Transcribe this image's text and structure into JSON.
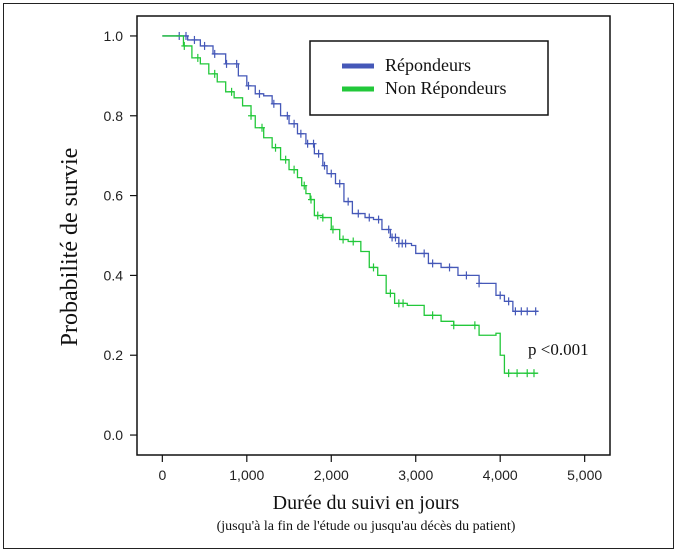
{
  "chart_data": {
    "type": "line",
    "title": "",
    "xlabel": "Durée du suivi en jours",
    "xlabel_sub": "(jusqu'à la fin de l'étude ou jusqu'au décès du patient)",
    "ylabel": "Probabilité de survie",
    "xlim": [
      -300,
      5300
    ],
    "ylim": [
      -0.05,
      1.05
    ],
    "x_ticks": [
      0,
      1000,
      2000,
      3000,
      4000,
      5000
    ],
    "x_tick_labels": [
      "0",
      "1,000",
      "2,000",
      "3,000",
      "4,000",
      "5,000"
    ],
    "y_ticks": [
      0.0,
      0.2,
      0.4,
      0.6,
      0.8,
      1.0
    ],
    "y_tick_labels": [
      "0.0",
      "0.2",
      "0.4",
      "0.6",
      "0.8",
      "1.0"
    ],
    "grid": false,
    "legend_position": "top-center",
    "annotation": "p <0.001",
    "series": [
      {
        "name": "Répondeurs",
        "color": "#4558b8",
        "step": true,
        "points": [
          [
            0,
            1.0
          ],
          [
            150,
            1.0
          ],
          [
            300,
            0.99
          ],
          [
            450,
            0.975
          ],
          [
            600,
            0.955
          ],
          [
            750,
            0.93
          ],
          [
            900,
            0.9
          ],
          [
            1000,
            0.875
          ],
          [
            1100,
            0.855
          ],
          [
            1200,
            0.85
          ],
          [
            1300,
            0.83
          ],
          [
            1400,
            0.8
          ],
          [
            1500,
            0.78
          ],
          [
            1600,
            0.755
          ],
          [
            1700,
            0.73
          ],
          [
            1800,
            0.705
          ],
          [
            1900,
            0.675
          ],
          [
            1950,
            0.655
          ],
          [
            2050,
            0.63
          ],
          [
            2150,
            0.585
          ],
          [
            2250,
            0.555
          ],
          [
            2400,
            0.545
          ],
          [
            2500,
            0.54
          ],
          [
            2600,
            0.515
          ],
          [
            2700,
            0.495
          ],
          [
            2800,
            0.48
          ],
          [
            2950,
            0.475
          ],
          [
            3000,
            0.455
          ],
          [
            3150,
            0.43
          ],
          [
            3300,
            0.42
          ],
          [
            3500,
            0.4
          ],
          [
            3750,
            0.38
          ],
          [
            3950,
            0.35
          ],
          [
            4050,
            0.335
          ],
          [
            4150,
            0.31
          ],
          [
            4450,
            0.31
          ]
        ],
        "censor_x": [
          200,
          280,
          380,
          500,
          620,
          760,
          880,
          1020,
          1150,
          1320,
          1480,
          1560,
          1640,
          1720,
          1790,
          1850,
          1920,
          2000,
          2100,
          2200,
          2320,
          2450,
          2560,
          2680,
          2720,
          2760,
          2800,
          2840,
          2880,
          3100,
          3200,
          3400,
          3600,
          3750,
          4000,
          4100,
          4180,
          4250,
          4320,
          4420
        ]
      },
      {
        "name": "Non Répondeurs",
        "color": "#22c83a",
        "step": true,
        "points": [
          [
            0,
            1.0
          ],
          [
            250,
            0.975
          ],
          [
            350,
            0.945
          ],
          [
            450,
            0.93
          ],
          [
            550,
            0.905
          ],
          [
            650,
            0.885
          ],
          [
            750,
            0.86
          ],
          [
            850,
            0.845
          ],
          [
            950,
            0.825
          ],
          [
            1050,
            0.8
          ],
          [
            1100,
            0.77
          ],
          [
            1200,
            0.745
          ],
          [
            1300,
            0.72
          ],
          [
            1400,
            0.69
          ],
          [
            1500,
            0.665
          ],
          [
            1600,
            0.645
          ],
          [
            1650,
            0.625
          ],
          [
            1700,
            0.605
          ],
          [
            1750,
            0.59
          ],
          [
            1800,
            0.55
          ],
          [
            1900,
            0.545
          ],
          [
            2000,
            0.515
          ],
          [
            2100,
            0.49
          ],
          [
            2200,
            0.485
          ],
          [
            2350,
            0.46
          ],
          [
            2450,
            0.42
          ],
          [
            2550,
            0.4
          ],
          [
            2650,
            0.355
          ],
          [
            2750,
            0.33
          ],
          [
            2900,
            0.325
          ],
          [
            3100,
            0.3
          ],
          [
            3300,
            0.285
          ],
          [
            3450,
            0.275
          ],
          [
            3750,
            0.25
          ],
          [
            3950,
            0.255
          ],
          [
            4000,
            0.2
          ],
          [
            4050,
            0.155
          ],
          [
            4450,
            0.155
          ]
        ],
        "censor_x": [
          260,
          420,
          620,
          820,
          1050,
          1180,
          1340,
          1460,
          1560,
          1680,
          1760,
          1840,
          1900,
          2020,
          2140,
          2260,
          2500,
          2700,
          2800,
          2850,
          3200,
          3450,
          3700,
          4100,
          4200,
          4320,
          4400
        ]
      }
    ]
  }
}
